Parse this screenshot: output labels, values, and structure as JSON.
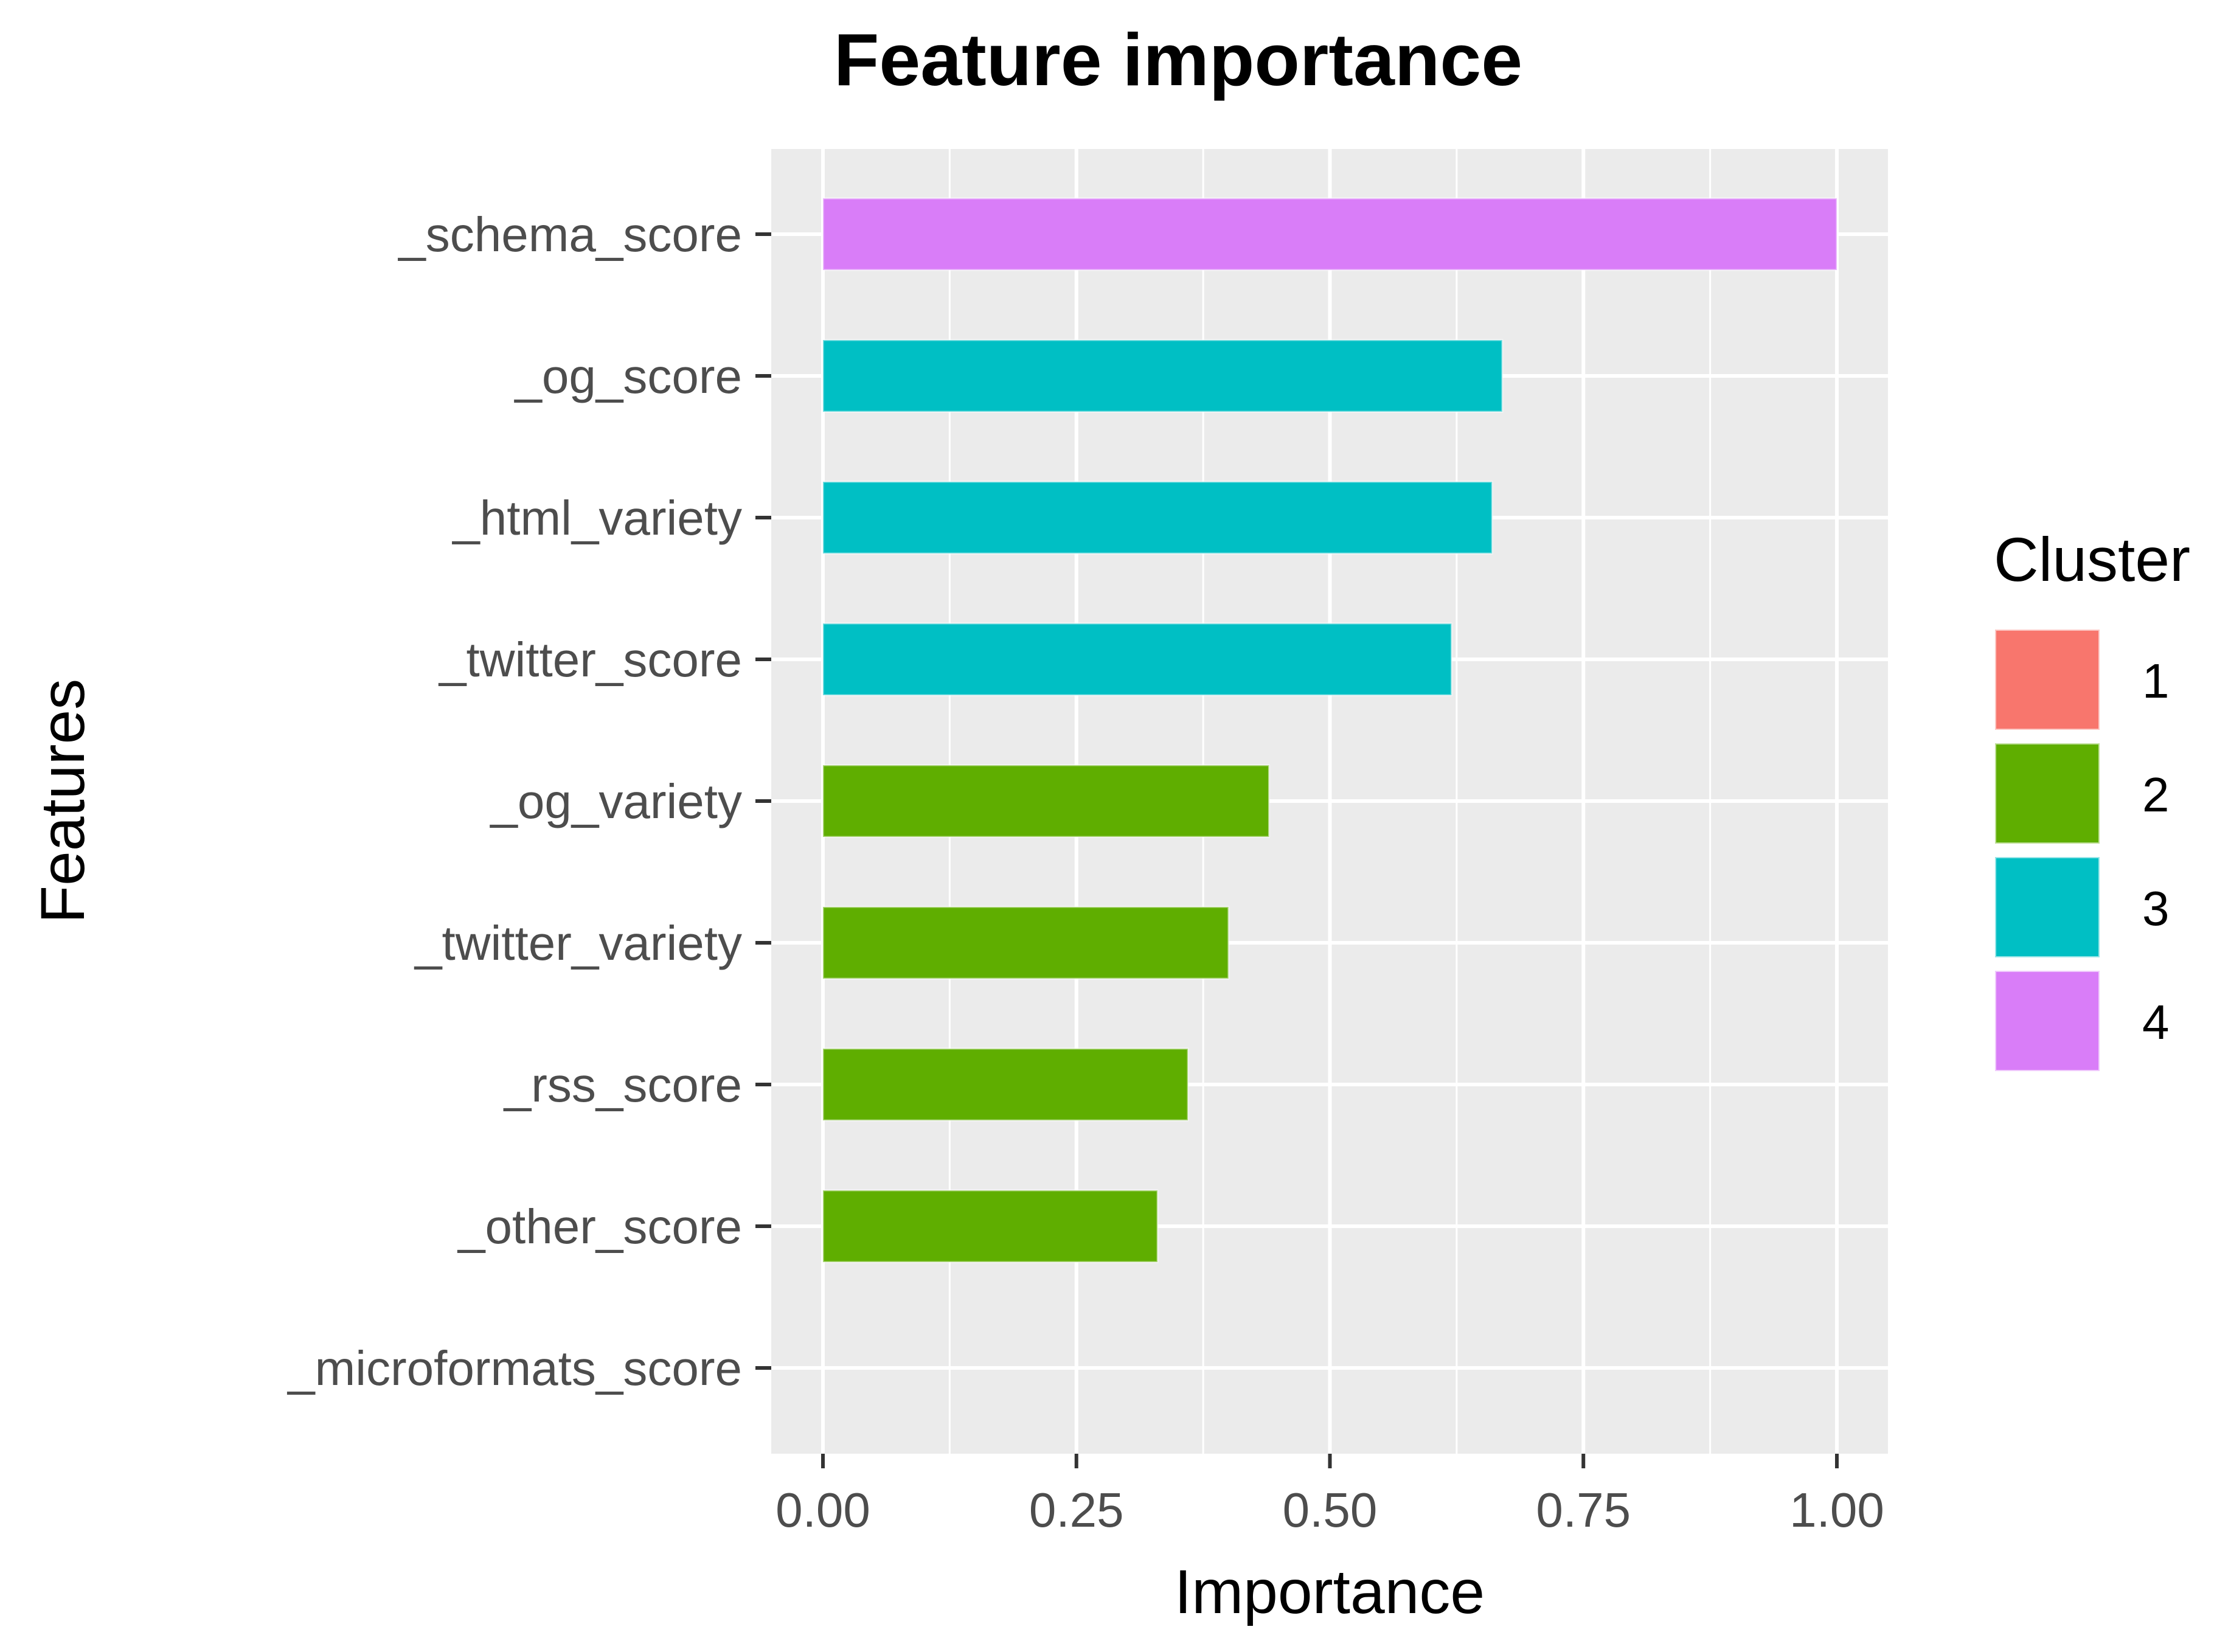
{
  "chart_data": {
    "type": "bar",
    "orientation": "horizontal",
    "title": "Feature importance",
    "xlabel": "Importance",
    "ylabel": "Features",
    "xlim": [
      0,
      1
    ],
    "x_ticks": [
      "0.00",
      "0.25",
      "0.50",
      "0.75",
      "1.00"
    ],
    "grid": true,
    "legend_position": "right",
    "legend_title": "Cluster",
    "legend": [
      {
        "label": "1",
        "color": "#F8766D"
      },
      {
        "label": "2",
        "color": "#5FAE00"
      },
      {
        "label": "3",
        "color": "#00BFC4"
      },
      {
        "label": "4",
        "color": "#D97DF8"
      }
    ],
    "categories": [
      "_schema_score",
      "_og_score",
      "_html_variety",
      "_twitter_score",
      "_og_variety",
      "_twitter_variety",
      "_rss_score",
      "_other_score",
      "_microformats_score"
    ],
    "values": [
      1.0,
      0.67,
      0.66,
      0.62,
      0.44,
      0.4,
      0.36,
      0.33,
      0.0
    ],
    "clusters": [
      "4",
      "3",
      "3",
      "3",
      "2",
      "2",
      "2",
      "2",
      "1"
    ]
  }
}
